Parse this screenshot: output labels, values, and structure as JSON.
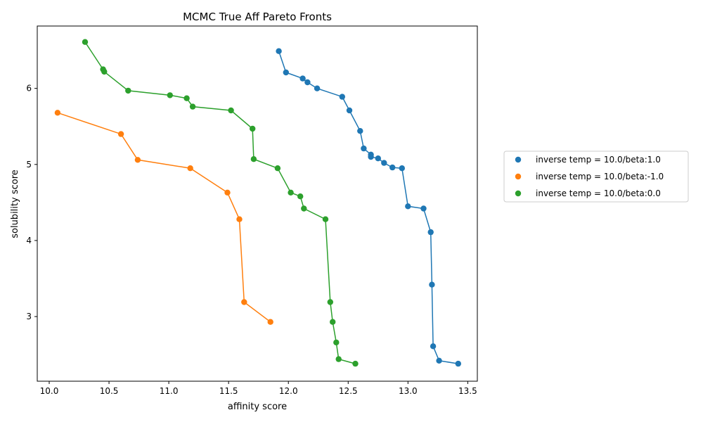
{
  "chart_data": {
    "type": "scatter",
    "title": "MCMC True Aff Pareto Fronts",
    "xlabel": "affinity score",
    "ylabel": "solubility score",
    "xlim": [
      9.9,
      13.58
    ],
    "ylim": [
      2.15,
      6.82
    ],
    "xticks": [
      "10.0",
      "10.5",
      "11.0",
      "11.5",
      "12.0",
      "12.5",
      "13.0",
      "13.5"
    ],
    "xtick_values": [
      10.0,
      10.5,
      11.0,
      11.5,
      12.0,
      12.5,
      13.0,
      13.5
    ],
    "yticks": [
      "3",
      "4",
      "5",
      "6"
    ],
    "ytick_values": [
      3,
      4,
      5,
      6
    ],
    "grid": false,
    "legend_position": "right",
    "series": [
      {
        "name": "inverse temp = 10.0/beta:1.0",
        "color": "#1f77b4",
        "x": [
          11.92,
          11.98,
          12.12,
          12.16,
          12.24,
          12.45,
          12.51,
          12.6,
          12.63,
          12.69,
          12.69,
          12.75,
          12.8,
          12.87,
          12.95,
          13.0,
          13.13,
          13.19,
          13.2,
          13.21,
          13.26,
          13.42
        ],
        "y": [
          6.49,
          6.21,
          6.13,
          6.08,
          6.0,
          5.89,
          5.71,
          5.44,
          5.21,
          5.13,
          5.1,
          5.08,
          5.02,
          4.96,
          4.95,
          4.45,
          4.42,
          4.11,
          3.42,
          2.61,
          2.42,
          2.38
        ]
      },
      {
        "name": "inverse temp = 10.0/beta:-1.0",
        "color": "#ff7f0e",
        "x": [
          10.07,
          10.6,
          10.74,
          11.18,
          11.49,
          11.59,
          11.63,
          11.85
        ],
        "y": [
          5.68,
          5.4,
          5.06,
          4.95,
          4.63,
          4.28,
          3.19,
          2.93
        ]
      },
      {
        "name": "inverse temp = 10.0/beta:0.0",
        "color": "#2ca02c",
        "x": [
          10.3,
          10.45,
          10.46,
          10.66,
          11.01,
          11.15,
          11.2,
          11.52,
          11.7,
          11.71,
          11.91,
          12.02,
          12.1,
          12.13,
          12.31,
          12.35,
          12.37,
          12.4,
          12.42,
          12.56
        ],
        "y": [
          6.61,
          6.25,
          6.22,
          5.97,
          5.91,
          5.87,
          5.76,
          5.71,
          5.47,
          5.07,
          4.95,
          4.63,
          4.58,
          4.42,
          4.28,
          3.19,
          2.93,
          2.66,
          2.44,
          2.38
        ]
      }
    ]
  }
}
